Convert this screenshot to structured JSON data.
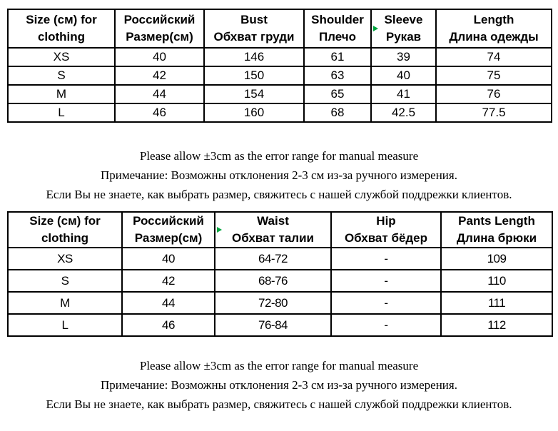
{
  "tables": [
    {
      "name": "clothing-size-table",
      "headers": [
        [
          "Size (см) for",
          "clothing"
        ],
        [
          "Российский",
          "Размер(см)"
        ],
        [
          "Bust",
          "Обхват груди"
        ],
        [
          "Shoulder",
          "Плечо"
        ],
        [
          "Sleeve",
          "Рукав"
        ],
        [
          "Length",
          "Длина одежды"
        ]
      ],
      "rows": [
        [
          "XS",
          "40",
          "146",
          "61",
          "39",
          "74"
        ],
        [
          "S",
          "42",
          "150",
          "63",
          "40",
          "75"
        ],
        [
          "M",
          "44",
          "154",
          "65",
          "41",
          "76"
        ],
        [
          "L",
          "46",
          "160",
          "68",
          "42.5",
          "77.5"
        ]
      ],
      "marker_col": 4
    },
    {
      "name": "pants-size-table",
      "headers": [
        [
          "Size (см) for",
          "clothing"
        ],
        [
          "Российский",
          "Размер(см)"
        ],
        [
          "Waist",
          "Обхват талии"
        ],
        [
          "Hip",
          "Обхват бёдер"
        ],
        [
          "Pants Length",
          "Длина брюки"
        ]
      ],
      "rows": [
        [
          "XS",
          "40",
          "64-72",
          "-",
          "109"
        ],
        [
          "S",
          "42",
          "68-76",
          "-",
          "110"
        ],
        [
          "M",
          "44",
          "72-80",
          "-",
          "111"
        ],
        [
          "L",
          "46",
          "76-84",
          "-",
          "112"
        ]
      ],
      "marker_col": 2
    }
  ],
  "notes": [
    "Please allow ±3cm as the error range for manual measure",
    "Примечание: Возможны отклонения 2-3 см из-за ручного измерения.",
    "Если Вы не знаете, как выбрать размер, свяжитесь с нашей службой поддрежки клиентов."
  ],
  "colors": {
    "marker_green": "#00a63f",
    "table_border": "#000000"
  }
}
